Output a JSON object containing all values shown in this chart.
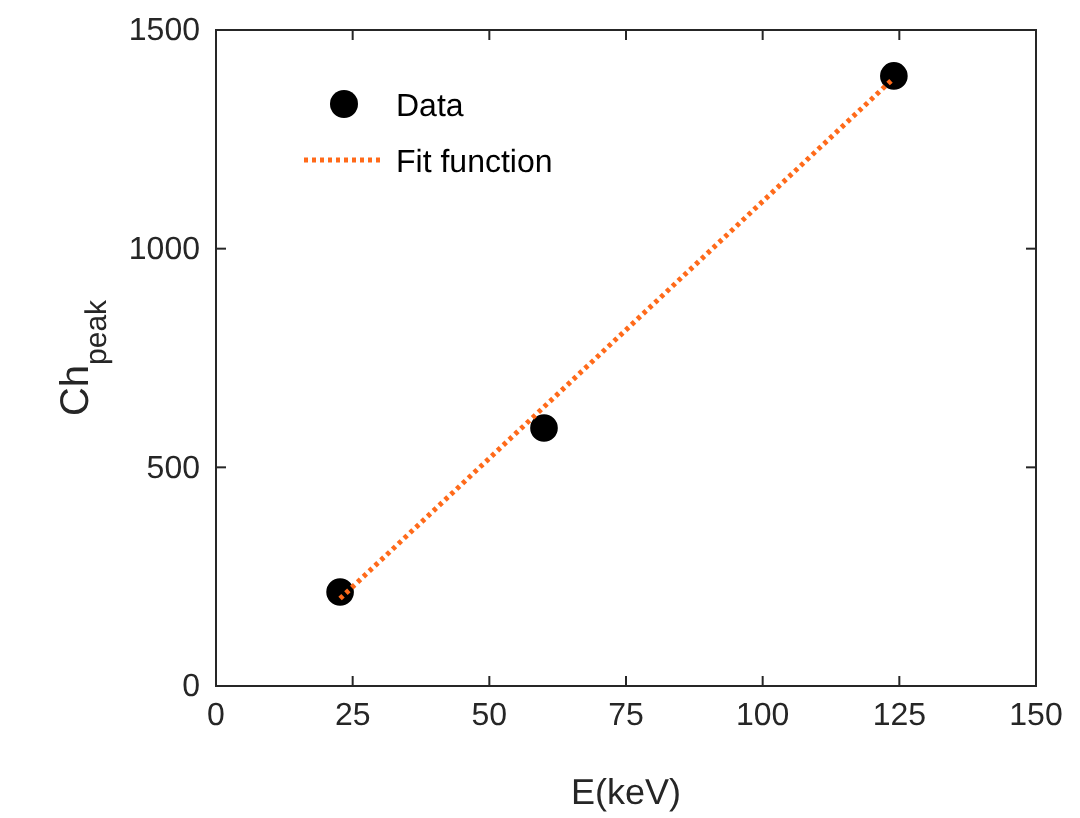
{
  "chart_data": {
    "type": "scatter",
    "xlabel": "E(keV)",
    "ylabel": "Ch$_{peak}$",
    "xlim": [
      0,
      150
    ],
    "ylim": [
      0,
      1500
    ],
    "xticks": [
      0,
      25,
      50,
      75,
      100,
      125,
      150
    ],
    "yticks": [
      0,
      500,
      1000,
      1500
    ],
    "grid": false,
    "legend": "top left",
    "series": [
      {
        "name": "Data",
        "type": "scatter",
        "color": "#000000",
        "x": [
          22.7,
          60,
          124
        ],
        "values": [
          215,
          590,
          1395
        ],
        "marker": "circle"
      },
      {
        "name": "Fit function",
        "type": "line",
        "color": "#ff6a1a",
        "x": [
          22.7,
          124
        ],
        "values": [
          200,
          1390
        ],
        "line_style": "dotted",
        "marker": "none"
      }
    ]
  }
}
